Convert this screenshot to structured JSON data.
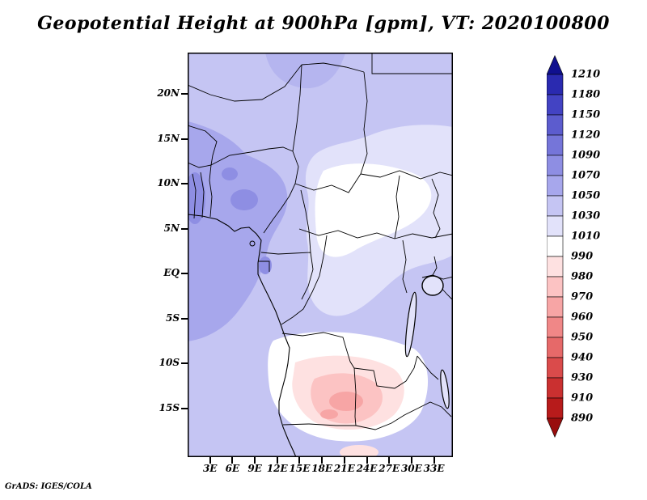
{
  "title": "Geopotential Height at 900hPa [gpm], VT: 2020100800",
  "attribution": "GrADS: IGES/COLA",
  "chart_data": {
    "type": "heatmap",
    "title": "Geopotential Height at 900hPa [gpm], VT: 2020100800",
    "variable": "Geopotential Height",
    "level": "900hPa",
    "units": "gpm",
    "valid_time": "2020100800",
    "x_axis": {
      "ticks": [
        "3E",
        "6E",
        "9E",
        "12E",
        "15E",
        "18E",
        "21E",
        "24E",
        "27E",
        "30E",
        "33E"
      ]
    },
    "y_axis": {
      "ticks": [
        "20N",
        "15N",
        "10N",
        "5N",
        "EQ",
        "5S",
        "10S",
        "15S"
      ]
    },
    "colorbar": {
      "labels": [
        1210,
        1180,
        1150,
        1120,
        1090,
        1070,
        1050,
        1030,
        1010,
        990,
        980,
        970,
        960,
        950,
        940,
        930,
        910,
        890
      ],
      "arrow_top_color": "#10108f",
      "arrow_bottom_color": "#990d0d",
      "segment_colors": [
        "#2a2ab0",
        "#4343c3",
        "#5c5cce",
        "#7575d9",
        "#8e8ee3",
        "#a7a7ec",
        "#c5c5f3",
        "#e2e2fa",
        "#ffffff",
        "#fee1e1",
        "#fcc3c3",
        "#f7a5a5",
        "#f08787",
        "#e66969",
        "#da4b4b",
        "#ca3030",
        "#b71b1b"
      ]
    },
    "map_palette": {
      "base": "#c5c5f3",
      "medium": "#a7a7ec",
      "deep": "#8e8ee3",
      "topblob": "#b5b5ef",
      "pale": "#e2e2fa",
      "white": "#ffffff",
      "pink1": "#fee1e1",
      "pink2": "#fcc3c3",
      "pink3": "#f7a5a5",
      "border": "#000000"
    }
  }
}
